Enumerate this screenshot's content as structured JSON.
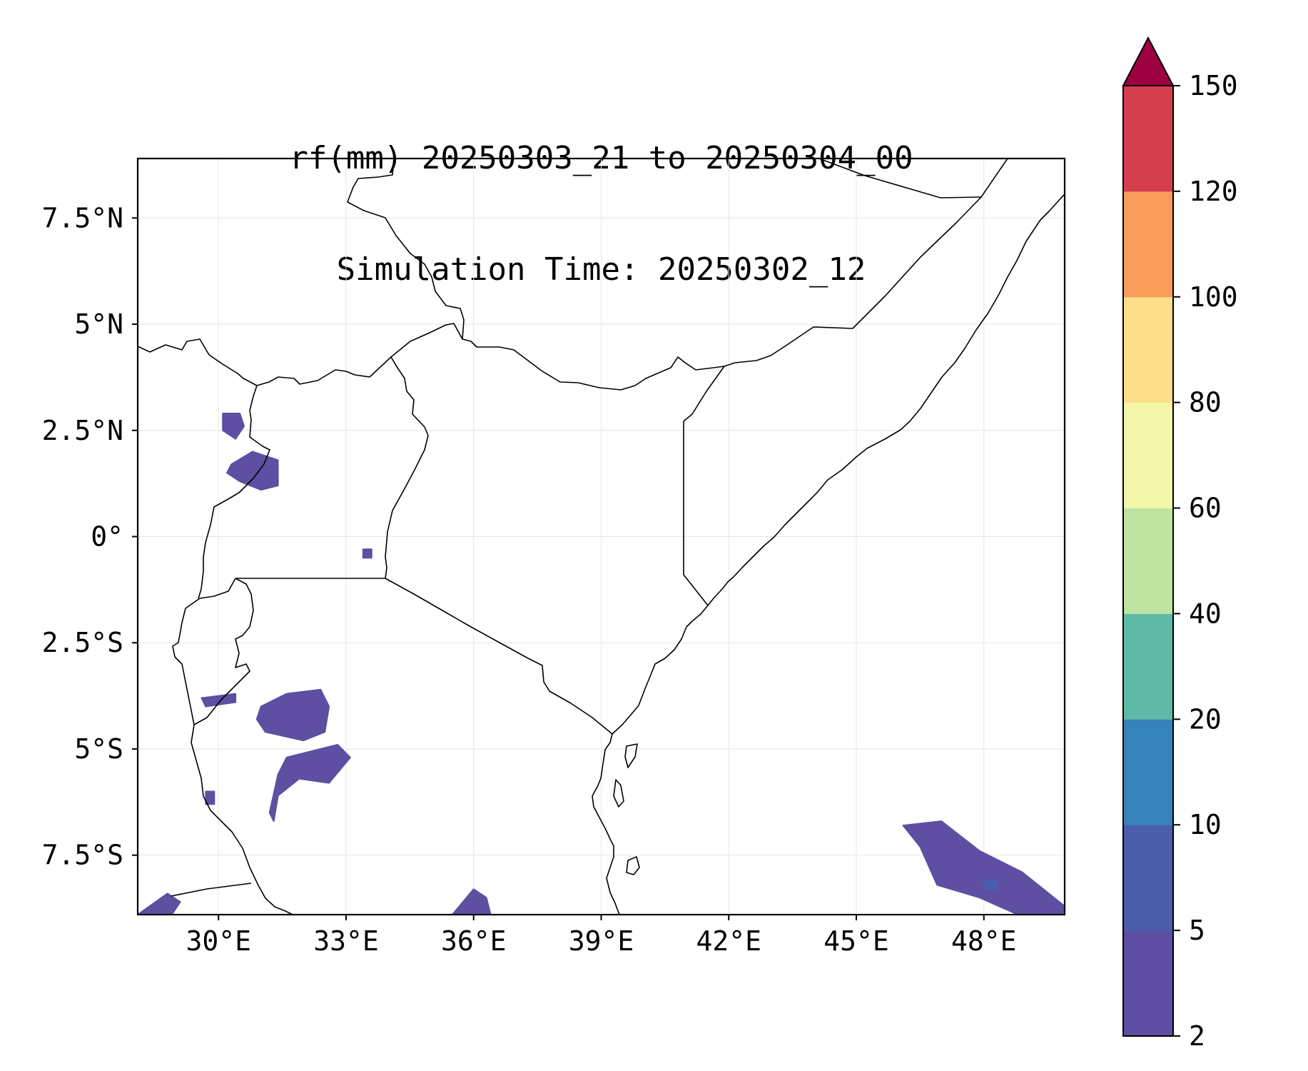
{
  "title": {
    "line1": "rf(mm) 20250303_21 to 20250304_00",
    "line2": "Simulation Time: 20250302_12"
  },
  "map": {
    "extent": {
      "lon_min": 28.1,
      "lon_max": 49.9,
      "lat_min": -8.9,
      "lat_max": 8.9
    },
    "x_ticks": [
      {
        "lon": 30,
        "label": "30°E"
      },
      {
        "lon": 33,
        "label": "33°E"
      },
      {
        "lon": 36,
        "label": "36°E"
      },
      {
        "lon": 39,
        "label": "39°E"
      },
      {
        "lon": 42,
        "label": "42°E"
      },
      {
        "lon": 45,
        "label": "45°E"
      },
      {
        "lon": 48,
        "label": "48°E"
      }
    ],
    "y_ticks": [
      {
        "lat": 7.5,
        "label": "7.5°N"
      },
      {
        "lat": 5,
        "label": "5°N"
      },
      {
        "lat": 2.5,
        "label": "2.5°N"
      },
      {
        "lat": 0,
        "label": "0°"
      },
      {
        "lat": -2.5,
        "label": "2.5°S"
      },
      {
        "lat": -5,
        "label": "5°S"
      },
      {
        "lat": -7.5,
        "label": "7.5°S"
      }
    ],
    "gridlines": true,
    "border_color": "#000000",
    "rain_patches": [
      {
        "region": "north-uganda",
        "category": "2-5",
        "points": [
          [
            30.1,
            2.9
          ],
          [
            30.5,
            2.9
          ],
          [
            30.6,
            2.6
          ],
          [
            30.4,
            2.3
          ],
          [
            30.1,
            2.5
          ]
        ]
      },
      {
        "region": "west-uganda-lake-albert",
        "category": "2-5",
        "points": [
          [
            30.3,
            1.7
          ],
          [
            30.8,
            2.0
          ],
          [
            31.4,
            1.8
          ],
          [
            31.4,
            1.2
          ],
          [
            31.0,
            1.1
          ],
          [
            30.5,
            1.3
          ],
          [
            30.2,
            1.5
          ]
        ]
      },
      {
        "region": "kenya-uganda-border",
        "category": "2-5",
        "points": [
          [
            33.4,
            -0.3
          ],
          [
            33.6,
            -0.3
          ],
          [
            33.6,
            -0.5
          ],
          [
            33.4,
            -0.5
          ]
        ]
      },
      {
        "region": "tanzania-northwest",
        "category": "2-5",
        "points": [
          [
            31.0,
            -4.0
          ],
          [
            31.6,
            -3.7
          ],
          [
            32.4,
            -3.6
          ],
          [
            32.6,
            -4.0
          ],
          [
            32.5,
            -4.6
          ],
          [
            32.0,
            -4.8
          ],
          [
            31.1,
            -4.6
          ],
          [
            30.9,
            -4.3
          ]
        ]
      },
      {
        "region": "tanzania-west-small",
        "category": "2-5",
        "points": [
          [
            29.6,
            -3.8
          ],
          [
            30.4,
            -3.7
          ],
          [
            30.4,
            -3.9
          ],
          [
            29.7,
            -4.0
          ]
        ]
      },
      {
        "region": "tanzania-central",
        "category": "2-5",
        "points": [
          [
            31.6,
            -5.2
          ],
          [
            32.8,
            -4.9
          ],
          [
            33.1,
            -5.2
          ],
          [
            32.6,
            -5.8
          ],
          [
            31.9,
            -5.7
          ],
          [
            31.4,
            -6.1
          ],
          [
            31.3,
            -6.7
          ],
          [
            31.2,
            -6.5
          ],
          [
            31.4,
            -5.6
          ]
        ]
      },
      {
        "region": "tanzania-west-dot",
        "category": "2-5",
        "points": [
          [
            29.7,
            -6.0
          ],
          [
            29.9,
            -6.0
          ],
          [
            29.9,
            -6.3
          ],
          [
            29.7,
            -6.3
          ]
        ]
      },
      {
        "region": "lake-malawi-north",
        "category": "2-5",
        "points": [
          [
            28.1,
            -8.9
          ],
          [
            28.8,
            -8.4
          ],
          [
            29.1,
            -8.6
          ],
          [
            28.9,
            -8.9
          ]
        ]
      },
      {
        "region": "tanzania-south",
        "category": "2-5",
        "points": [
          [
            35.5,
            -8.9
          ],
          [
            36.0,
            -8.3
          ],
          [
            36.3,
            -8.5
          ],
          [
            36.4,
            -8.9
          ]
        ]
      },
      {
        "region": "indian-ocean-east",
        "category": "2-5",
        "points": [
          [
            46.1,
            -6.8
          ],
          [
            47.0,
            -6.7
          ],
          [
            47.9,
            -7.4
          ],
          [
            48.9,
            -7.9
          ],
          [
            49.9,
            -8.7
          ],
          [
            49.9,
            -8.9
          ],
          [
            48.8,
            -8.9
          ],
          [
            47.9,
            -8.5
          ],
          [
            46.9,
            -8.2
          ],
          [
            46.5,
            -7.3
          ]
        ]
      },
      {
        "region": "indian-ocean-core",
        "category": "5-10",
        "points": [
          [
            48.0,
            -8.1
          ],
          [
            48.3,
            -8.1
          ],
          [
            48.3,
            -8.3
          ],
          [
            48.0,
            -8.3
          ]
        ]
      }
    ]
  },
  "colorbar": {
    "colors": [
      "#5e4fa2",
      "#4a5eac",
      "#3682ba",
      "#5fbaa8",
      "#bde4a0",
      "#f3f7aa",
      "#fbdf8a",
      "#f99c59",
      "#d53e4f",
      "#9e0142"
    ],
    "ticks": [
      "2",
      "5",
      "10",
      "20",
      "40",
      "60",
      "80",
      "100",
      "120",
      "150"
    ],
    "extend": "max"
  }
}
